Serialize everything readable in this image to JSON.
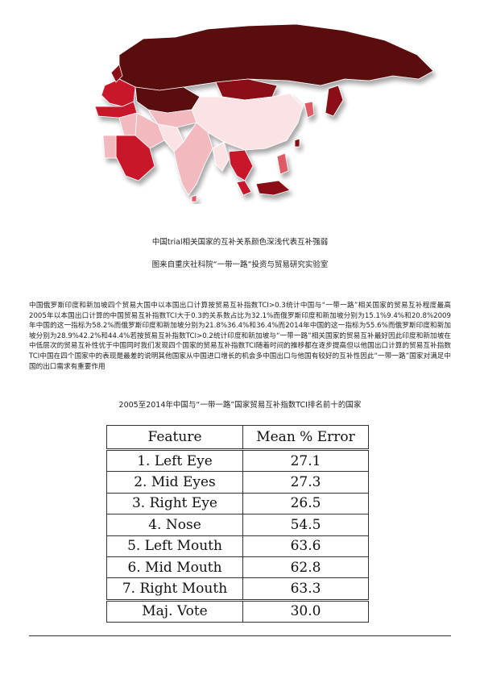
{
  "figure": {
    "caption": "中国trial相关国家的互补关系颜色深浅代表互补强弱",
    "source": "图来自重庆社科院“一带一路”投资与贸易研究实验室"
  },
  "paragraph": "中国俄罗斯印度和新加坡四个贸易大国中以本国出口计算按贸易互补指数TCI>0.3统计中国与“一带一路”相关国家的贸易互补程度最高2005年以本国出口计算的中国贸易互补指数TCI大于0.3的关系数占比为32.1%而俄罗斯印度和新加坡分别为15.1%9.4%和20.8%2009年中国的这一指标为58.2%而俄罗斯印度和新加坡分别为21.8%36.4%和36.4%而2014年中国的这一指标为55.6%而俄罗斯印度和新加坡分别为28.9%42.2%和44.4%若按贸易互补指数TCI>0.2统计印度和新加坡与“一带一路”相关国家的贸易互补最好因此印度和新加坡在中低层次的贸易互补性优于中国同时我们发现四个国家的贸易互补指数TCI随着时间的推移都在逐步提高但以他国出口计算的贸易互补指数TCI中国在四个国家中的表现是最差的说明其他国家从中国进口增长的机会多中国出口与他国有较好的互补性因此“一带一路”国家对满足中国的出口需求有重要作用",
  "table_title": "2005至2014年中国与“一带一路”国家贸易互补指数TCI排名前十的国家",
  "table": {
    "headers": [
      "Feature",
      "Mean % Error"
    ],
    "rows": [
      [
        "1. Left Eye",
        "27.1"
      ],
      [
        "2. Mid Eyes",
        "27.3"
      ],
      [
        "3. Right Eye",
        "26.5"
      ],
      [
        "4. Nose",
        "54.5"
      ],
      [
        "5. Left Mouth",
        "63.6"
      ],
      [
        "6. Mid Mouth",
        "62.8"
      ],
      [
        "7. Right Mouth",
        "63.3"
      ]
    ],
    "vote_row": [
      "Maj. Vote",
      "30.0"
    ]
  },
  "map_colors": {
    "darkest": "#5a0a10",
    "dark": "#8b1018",
    "red": "#c8182a",
    "medium": "#e05a66",
    "light": "#f2b9bf",
    "pale": "#fbe3e5",
    "outline": "#ffffff"
  }
}
